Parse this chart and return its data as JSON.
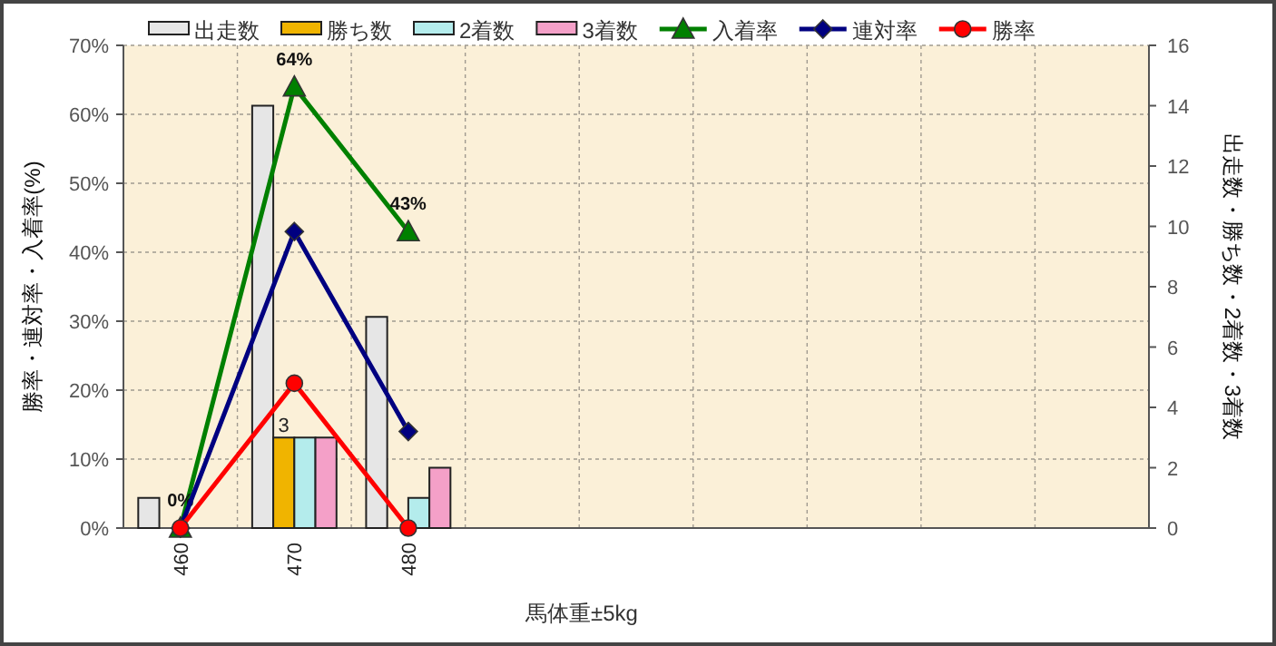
{
  "chart_data": {
    "type": "bar",
    "xlabel": "馬体重±5kg",
    "ylabel": "勝率・連対率・入着率(%)",
    "y2label": "出走数・勝ち数・2着数・3着数",
    "categories": [
      "460",
      "470",
      "480",
      null,
      null,
      null,
      null,
      null,
      null
    ],
    "series": [
      {
        "name": "出走数",
        "axis": "y2",
        "color": "#e6e6e6",
        "values": [
          1,
          14,
          7,
          null,
          null,
          null,
          null,
          null,
          null
        ]
      },
      {
        "name": "勝ち数",
        "axis": "y2",
        "color": "#f0b400",
        "values": [
          0,
          3,
          0,
          null,
          null,
          null,
          null,
          null,
          null
        ],
        "value_labels": [
          null,
          "3",
          null,
          null,
          null,
          null,
          null,
          null,
          null
        ]
      },
      {
        "name": "2着数",
        "axis": "y2",
        "color": "#b4ecec",
        "values": [
          0,
          3,
          1,
          null,
          null,
          null,
          null,
          null,
          null
        ]
      },
      {
        "name": "3着数",
        "axis": "y2",
        "color": "#f4a0c8",
        "values": [
          0,
          3,
          2,
          null,
          null,
          null,
          null,
          null,
          null
        ]
      },
      {
        "name": "入着率",
        "type": "line",
        "axis": "y",
        "color": "#008000",
        "marker": "triangle",
        "values": [
          0,
          64,
          43,
          null,
          null,
          null,
          null,
          null,
          null
        ],
        "value_labels": [
          "0%",
          "64%",
          "43%",
          null,
          null,
          null,
          null,
          null,
          null
        ]
      },
      {
        "name": "連対率",
        "type": "line",
        "axis": "y",
        "color": "#000080",
        "marker": "diamond",
        "values": [
          0,
          43,
          14,
          null,
          null,
          null,
          null,
          null,
          null
        ]
      },
      {
        "name": "勝率",
        "type": "line",
        "axis": "y",
        "color": "#ff0000",
        "marker": "circle",
        "values": [
          0,
          21,
          0,
          null,
          null,
          null,
          null,
          null,
          null
        ]
      }
    ],
    "ylim": [
      0,
      70
    ],
    "yticks": [
      {
        "value": 0,
        "label": "0%"
      },
      {
        "value": 10,
        "label": "10%"
      },
      {
        "value": 20,
        "label": "20%"
      },
      {
        "value": 30,
        "label": "30%"
      },
      {
        "value": 40,
        "label": "40%"
      },
      {
        "value": 50,
        "label": "50%"
      },
      {
        "value": 60,
        "label": "60%"
      },
      {
        "value": 70,
        "label": "70%"
      }
    ],
    "y2lim": [
      0,
      16
    ],
    "y2ticks": [
      0,
      2,
      4,
      6,
      8,
      10,
      12,
      14,
      16
    ],
    "grid": true,
    "legend": "top"
  }
}
